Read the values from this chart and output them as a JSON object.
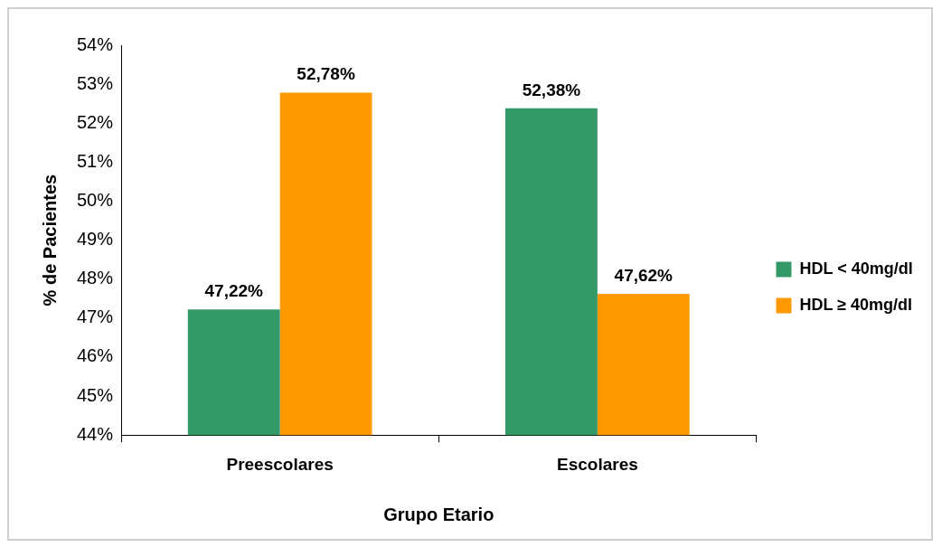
{
  "chart_data": {
    "type": "bar",
    "xlabel": "Grupo Etario",
    "ylabel": "% de Pacientes",
    "categories": [
      "Preescolares",
      "Escolares"
    ],
    "series": [
      {
        "name": "HDL < 40mg/dl",
        "color": "#339966",
        "values": [
          47.22,
          52.38
        ],
        "value_labels": [
          "47,22%",
          "52,38%"
        ]
      },
      {
        "name": "HDL ≥ 40mg/dl",
        "color": "#ff9900",
        "values": [
          52.78,
          47.62
        ],
        "value_labels": [
          "52,78%",
          "47,62%"
        ]
      }
    ],
    "ylim": [
      44,
      54
    ],
    "yticks": [
      {
        "value": 44,
        "label": "44%"
      },
      {
        "value": 45,
        "label": "45%"
      },
      {
        "value": 46,
        "label": "46%"
      },
      {
        "value": 47,
        "label": "47%"
      },
      {
        "value": 48,
        "label": "48%"
      },
      {
        "value": 49,
        "label": "49%"
      },
      {
        "value": 50,
        "label": "50%"
      },
      {
        "value": 51,
        "label": "51%"
      },
      {
        "value": 52,
        "label": "52%"
      },
      {
        "value": 53,
        "label": "53%"
      },
      {
        "value": 54,
        "label": "54%"
      }
    ],
    "legend": "right"
  }
}
